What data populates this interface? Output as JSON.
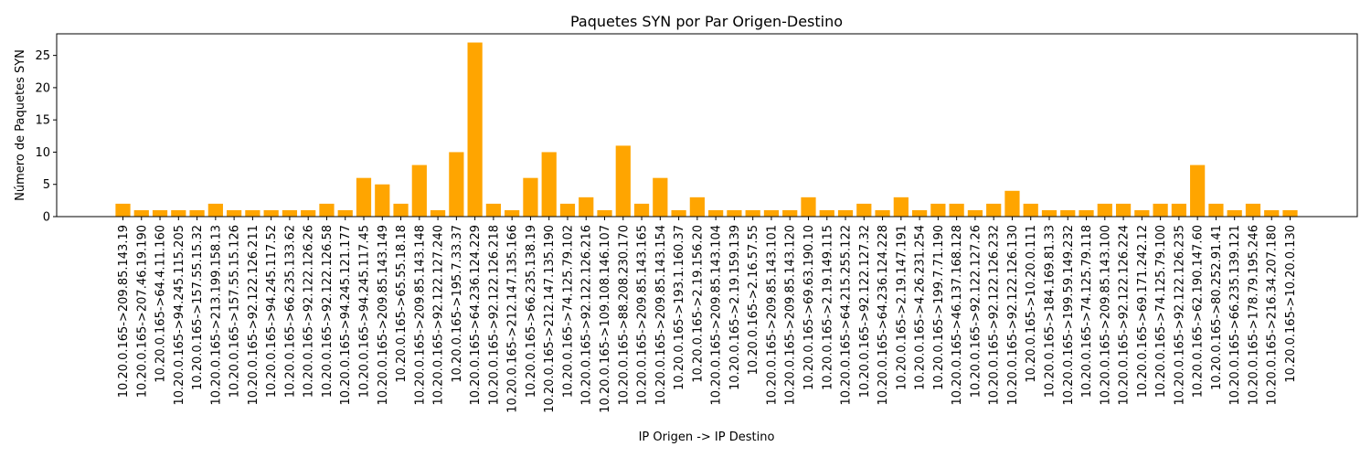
{
  "chart_data": {
    "type": "bar",
    "title": "Paquetes SYN por Par Origen-Destino",
    "xlabel": "IP Origen -> IP Destino",
    "ylabel": "Número de Paquetes SYN",
    "ylim": [
      0,
      28.35
    ],
    "yticks": [
      0,
      5,
      10,
      15,
      20,
      25
    ],
    "bar_color": "#ffa500",
    "grid": false,
    "categories": [
      "10.20.0.165->209.85.143.19",
      "10.20.0.165->207.46.19.190",
      "10.20.0.165->64.4.11.160",
      "10.20.0.165->94.245.115.205",
      "10.20.0.165->157.55.15.32",
      "10.20.0.165->213.199.158.13",
      "10.20.0.165->157.55.15.126",
      "10.20.0.165->92.122.126.211",
      "10.20.0.165->94.245.117.52",
      "10.20.0.165->66.235.133.62",
      "10.20.0.165->92.122.126.26",
      "10.20.0.165->92.122.126.58",
      "10.20.0.165->94.245.121.177",
      "10.20.0.165->94.245.117.45",
      "10.20.0.165->209.85.143.149",
      "10.20.0.165->65.55.18.18",
      "10.20.0.165->209.85.143.148",
      "10.20.0.165->92.122.127.240",
      "10.20.0.165->195.7.33.37",
      "10.20.0.165->64.236.124.229",
      "10.20.0.165->92.122.126.218",
      "10.20.0.165->212.147.135.166",
      "10.20.0.165->66.235.138.19",
      "10.20.0.165->212.147.135.190",
      "10.20.0.165->74.125.79.102",
      "10.20.0.165->92.122.126.216",
      "10.20.0.165->109.108.146.107",
      "10.20.0.165->88.208.230.170",
      "10.20.0.165->209.85.143.165",
      "10.20.0.165->209.85.143.154",
      "10.20.0.165->193.1.160.37",
      "10.20.0.165->2.19.156.20",
      "10.20.0.165->209.85.143.104",
      "10.20.0.165->2.19.159.139",
      "10.20.0.165->2.16.57.55",
      "10.20.0.165->209.85.143.101",
      "10.20.0.165->209.85.143.120",
      "10.20.0.165->69.63.190.10",
      "10.20.0.165->2.19.149.115",
      "10.20.0.165->64.215.255.122",
      "10.20.0.165->92.122.127.32",
      "10.20.0.165->64.236.124.228",
      "10.20.0.165->2.19.147.191",
      "10.20.0.165->4.26.231.254",
      "10.20.0.165->199.7.71.190",
      "10.20.0.165->46.137.168.128",
      "10.20.0.165->92.122.127.26",
      "10.20.0.165->92.122.126.232",
      "10.20.0.165->92.122.126.130",
      "10.20.0.165->10.20.0.111",
      "10.20.0.165->184.169.81.33",
      "10.20.0.165->199.59.149.232",
      "10.20.0.165->74.125.79.118",
      "10.20.0.165->209.85.143.100",
      "10.20.0.165->92.122.126.224",
      "10.20.0.165->69.171.242.12",
      "10.20.0.165->74.125.79.100",
      "10.20.0.165->92.122.126.235",
      "10.20.0.165->62.190.147.60",
      "10.20.0.165->80.252.91.41",
      "10.20.0.165->66.235.139.121",
      "10.20.0.165->178.79.195.246",
      "10.20.0.165->216.34.207.180",
      "10.20.0.165->10.20.0.130"
    ],
    "values": [
      2,
      1,
      1,
      1,
      1,
      2,
      1,
      1,
      1,
      1,
      1,
      2,
      1,
      6,
      5,
      2,
      8,
      1,
      10,
      27,
      2,
      1,
      6,
      10,
      2,
      3,
      1,
      11,
      2,
      6,
      1,
      3,
      1,
      1,
      1,
      1,
      1,
      3,
      1,
      1,
      2,
      1,
      3,
      1,
      2,
      2,
      1,
      2,
      4,
      2,
      1,
      1,
      1,
      2,
      2,
      1,
      2,
      2,
      8,
      2,
      1,
      2,
      1,
      1
    ]
  }
}
